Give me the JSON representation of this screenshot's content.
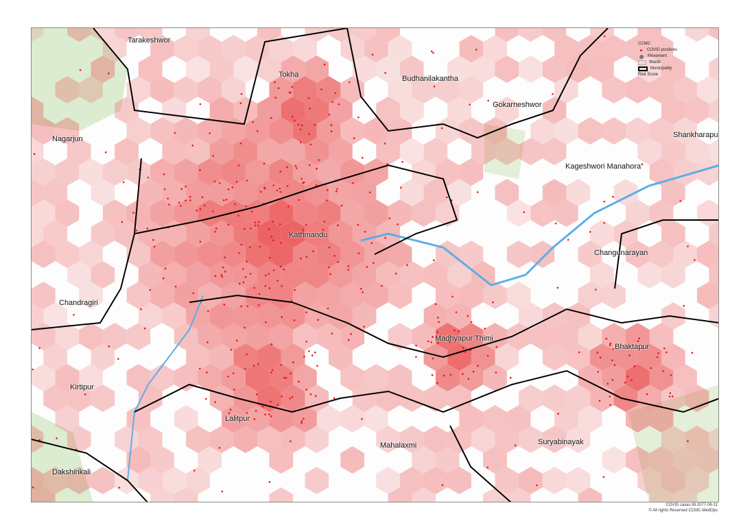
{
  "legend": {
    "title": "CCMC",
    "items": [
      {
        "label": "COVID positives",
        "symbol": "red-dot",
        "color": "#e8121a"
      },
      {
        "label": "Movement",
        "symbol": "grey-dot",
        "color": "#777777"
      },
      {
        "label": "Wards",
        "symbol": "thin-outline",
        "color": "#aaaaaa"
      },
      {
        "label": "Municipality",
        "symbol": "thick-outline",
        "color": "#000000"
      }
    ],
    "risk_label": "Risk Score"
  },
  "municipalities": [
    "Tarakeshwor",
    "Tokha",
    "Budhanilakantha",
    "Gokarneshwor",
    "Shankharapur",
    "Nagarjun",
    "Kageshwori Manahora",
    "Kathmandu",
    "Changunarayan",
    "Chandragiri",
    "Madhyapur Thimi",
    "Bhaktapur",
    "Kirtipur",
    "Lalitpur",
    "Mahalaxmi",
    "Suryabinayak",
    "Dakshinkali"
  ],
  "footer": {
    "line1": "COVID cases till 2077-06-11",
    "line2": "© All rights Reserved CCMC-MedOps"
  },
  "colors": {
    "hex_low": "#f8d4d4",
    "hex_high": "#e84848",
    "case_dot": "#e8121a",
    "river": "#5aaee8",
    "forest": "#dbecd0"
  }
}
